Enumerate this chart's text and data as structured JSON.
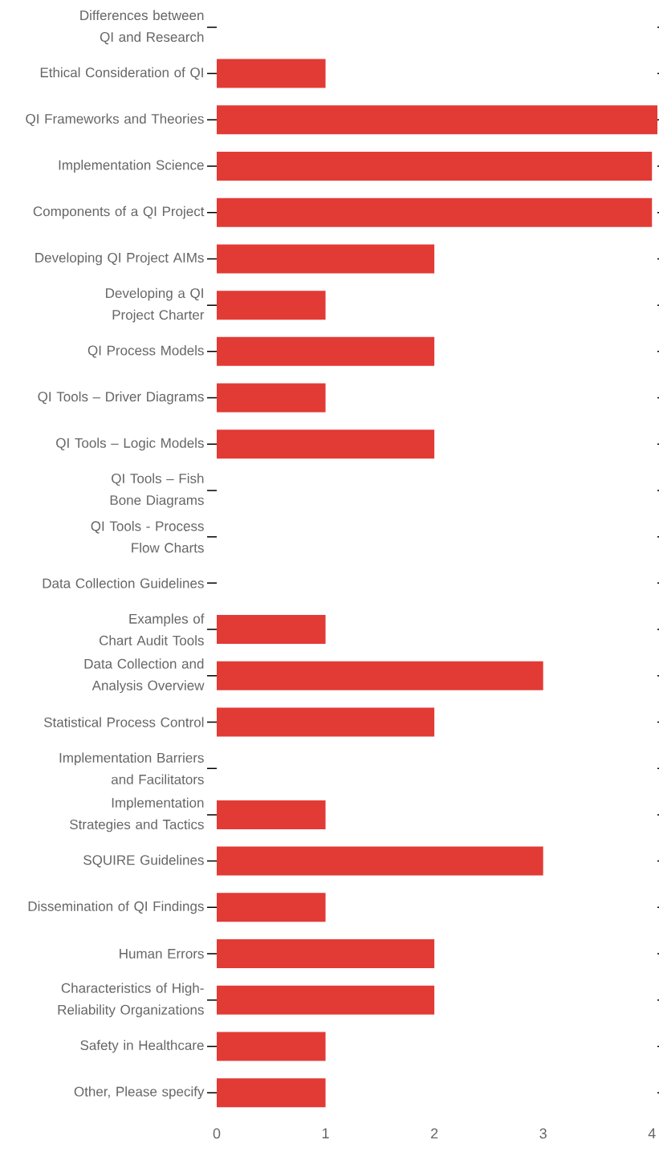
{
  "chart_data": {
    "type": "bar",
    "orientation": "horizontal",
    "color": "#e23a35",
    "categories": [
      "Differences between QI and Research",
      "Ethical Consideration of QI",
      "QI Frameworks and Theories",
      "Implementation Science",
      "Components of a QI Project",
      "Developing QI Project AIMs",
      "Developing a QI Project Charter",
      "QI Process Models",
      "QI Tools – Driver Diagrams",
      "QI Tools – Logic Models",
      "QI Tools – Fish Bone Diagrams",
      "QI Tools - Process Flow Charts",
      "Data Collection Guidelines",
      "Examples of Chart Audit Tools",
      "Data Collection and Analysis Overview",
      "Statistical Process Control",
      "Implementation Barriers and Facilitators",
      "Implementation Strategies and Tactics",
      "SQUIRE Guidelines",
      "Dissemination of QI Findings",
      "Human Errors",
      "Characteristics of High-Reliability Organizations",
      "Safety in Healthcare",
      "Other, Please specify"
    ],
    "values": [
      0,
      1,
      4.05,
      4,
      4,
      2,
      1,
      2,
      1,
      2,
      0,
      0,
      0,
      1,
      3,
      2,
      0,
      1,
      3,
      1,
      2,
      2,
      1,
      1
    ],
    "xlim": [
      0,
      4.05
    ],
    "xticks": [
      0,
      1,
      2,
      3,
      4
    ]
  }
}
